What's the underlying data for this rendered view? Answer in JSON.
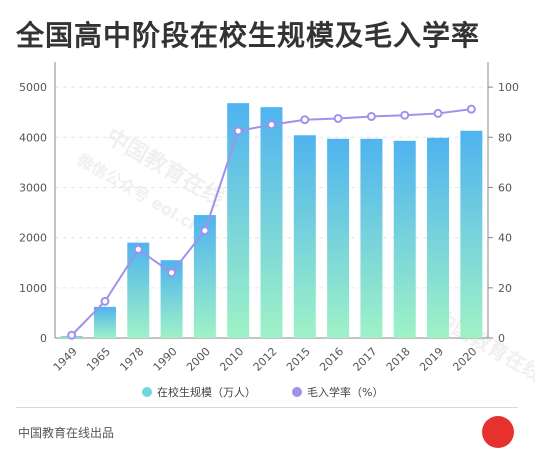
{
  "title": "全国高中阶段在校生规模及毛入学率",
  "credit": "中国教育在线出品",
  "watermark": {
    "line1": "中国教育在线",
    "line2": "微信公众号",
    "line3": "eol.cn"
  },
  "colors": {
    "bar_top": "#4fb3ef",
    "bar_bottom": "#9ff2c6",
    "line": "#9d93ec",
    "accent": "#e5322d"
  },
  "chart_data": {
    "type": "bar",
    "categories": [
      "1949",
      "1965",
      "1978",
      "1990",
      "2000",
      "2010",
      "2012",
      "2015",
      "2016",
      "2017",
      "2018",
      "2019",
      "2020"
    ],
    "series": [
      {
        "name": "在校生规模（万人）",
        "type": "bar",
        "axis": "left",
        "values": [
          35,
          620,
          1900,
          1550,
          2450,
          4680,
          4600,
          4040,
          3970,
          3970,
          3930,
          3990,
          4130
        ]
      },
      {
        "name": "毛入学率（%）",
        "type": "line",
        "axis": "right",
        "values": [
          1.1,
          14.6,
          35.3,
          26.0,
          42.8,
          82.5,
          85.0,
          87.0,
          87.5,
          88.3,
          88.8,
          89.5,
          91.2
        ]
      }
    ],
    "left_ticks": [
      "0",
      "1000",
      "2000",
      "3000",
      "4000",
      "5000"
    ],
    "right_ticks": [
      "0",
      "20",
      "40",
      "60",
      "80",
      "100"
    ],
    "ylim_left": [
      0,
      5500
    ],
    "ylim_right": [
      0,
      110
    ],
    "grid": true,
    "legend_position": "bottom"
  }
}
